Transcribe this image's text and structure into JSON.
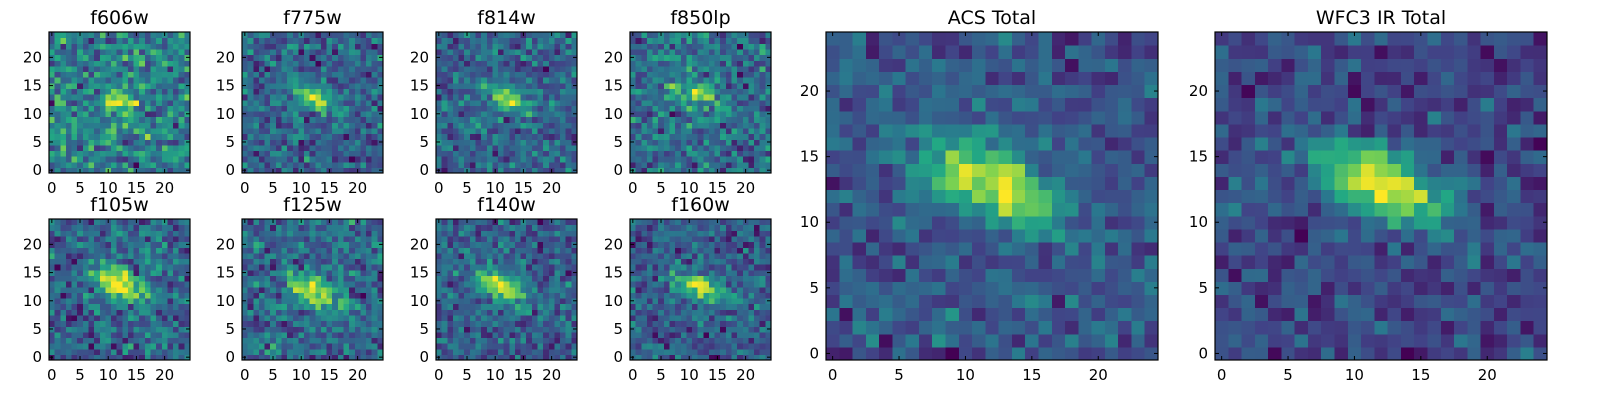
{
  "figure": {
    "colormap": "viridis",
    "colormap_stops": [
      "#440154",
      "#414487",
      "#2a788e",
      "#22a884",
      "#7ad151",
      "#fde725"
    ],
    "background": "#ffffff"
  },
  "chart_data": [
    {
      "type": "heatmap",
      "title": "f606w",
      "grid": "25x25",
      "xlim": [
        -0.5,
        24.5
      ],
      "ylim": [
        -0.5,
        24.5
      ],
      "x_ticks": [
        0,
        5,
        10,
        15,
        20
      ],
      "x_tick_labels": [
        "0",
        "5",
        "10",
        "15",
        "20"
      ],
      "y_ticks": [
        0,
        5,
        10,
        15,
        20
      ],
      "y_tick_labels": [
        "0",
        "5",
        "10",
        "15",
        "20"
      ],
      "source": {
        "x": 12,
        "y": 12.5,
        "sx": 2.2,
        "sy": 1.6,
        "rho": -0.2,
        "peak": 0.8
      },
      "background_level": 0.52,
      "noise": 0.3,
      "seed": 11
    },
    {
      "type": "heatmap",
      "title": "f775w",
      "grid": "25x25",
      "xlim": [
        -0.5,
        24.5
      ],
      "ylim": [
        -0.5,
        24.5
      ],
      "x_ticks": [
        0,
        5,
        10,
        15,
        20
      ],
      "x_tick_labels": [
        "0",
        "5",
        "10",
        "15",
        "20"
      ],
      "y_ticks": [
        0,
        5,
        10,
        15,
        20
      ],
      "y_tick_labels": [
        "0",
        "5",
        "10",
        "15",
        "20"
      ],
      "source": {
        "x": 12,
        "y": 13,
        "sx": 3.2,
        "sy": 1.8,
        "rho": -0.7,
        "peak": 1.0
      },
      "background_level": 0.5,
      "noise": 0.25,
      "seed": 23
    },
    {
      "type": "heatmap",
      "title": "f814w",
      "grid": "25x25",
      "xlim": [
        -0.5,
        24.5
      ],
      "ylim": [
        -0.5,
        24.5
      ],
      "x_ticks": [
        0,
        5,
        10,
        15,
        20
      ],
      "x_tick_labels": [
        "0",
        "5",
        "10",
        "15",
        "20"
      ],
      "y_ticks": [
        0,
        5,
        10,
        15,
        20
      ],
      "y_tick_labels": [
        "0",
        "5",
        "10",
        "15",
        "20"
      ],
      "source": {
        "x": 12,
        "y": 13,
        "sx": 3.2,
        "sy": 1.8,
        "rho": -0.7,
        "peak": 1.0
      },
      "background_level": 0.5,
      "noise": 0.25,
      "seed": 37
    },
    {
      "type": "heatmap",
      "title": "f850lp",
      "grid": "25x25",
      "xlim": [
        -0.5,
        24.5
      ],
      "ylim": [
        -0.5,
        24.5
      ],
      "x_ticks": [
        0,
        5,
        10,
        15,
        20
      ],
      "x_tick_labels": [
        "0",
        "5",
        "10",
        "15",
        "20"
      ],
      "y_ticks": [
        0,
        5,
        10,
        15,
        20
      ],
      "y_tick_labels": [
        "0",
        "5",
        "10",
        "15",
        "20"
      ],
      "source": {
        "x": 11,
        "y": 13.5,
        "sx": 2.8,
        "sy": 1.8,
        "rho": -0.5,
        "peak": 0.9
      },
      "background_level": 0.52,
      "noise": 0.3,
      "seed": 41
    },
    {
      "type": "heatmap",
      "title": "f105w",
      "grid": "25x25",
      "xlim": [
        -0.5,
        24.5
      ],
      "ylim": [
        -0.5,
        24.5
      ],
      "x_ticks": [
        0,
        5,
        10,
        15,
        20
      ],
      "x_tick_labels": [
        "0",
        "5",
        "10",
        "15",
        "20"
      ],
      "y_ticks": [
        0,
        5,
        10,
        15,
        20
      ],
      "y_tick_labels": [
        "0",
        "5",
        "10",
        "15",
        "20"
      ],
      "source": {
        "x": 12,
        "y": 13,
        "sx": 3.0,
        "sy": 2.0,
        "rho": -0.5,
        "peak": 1.0
      },
      "background_level": 0.5,
      "noise": 0.18,
      "seed": 53
    },
    {
      "type": "heatmap",
      "title": "f125w",
      "grid": "25x25",
      "xlim": [
        -0.5,
        24.5
      ],
      "ylim": [
        -0.5,
        24.5
      ],
      "x_ticks": [
        0,
        5,
        10,
        15,
        20
      ],
      "x_tick_labels": [
        "0",
        "5",
        "10",
        "15",
        "20"
      ],
      "y_ticks": [
        0,
        5,
        10,
        15,
        20
      ],
      "y_tick_labels": [
        "0",
        "5",
        "10",
        "15",
        "20"
      ],
      "source": {
        "x": 12,
        "y": 12,
        "sx": 3.0,
        "sy": 2.0,
        "rho": -0.5,
        "peak": 0.95
      },
      "background_level": 0.5,
      "noise": 0.2,
      "seed": 67
    },
    {
      "type": "heatmap",
      "title": "f140w",
      "grid": "25x25",
      "xlim": [
        -0.5,
        24.5
      ],
      "ylim": [
        -0.5,
        24.5
      ],
      "x_ticks": [
        0,
        5,
        10,
        15,
        20
      ],
      "x_tick_labels": [
        "0",
        "5",
        "10",
        "15",
        "20"
      ],
      "y_ticks": [
        0,
        5,
        10,
        15,
        20
      ],
      "y_tick_labels": [
        "0",
        "5",
        "10",
        "15",
        "20"
      ],
      "source": {
        "x": 11,
        "y": 12.5,
        "sx": 3.0,
        "sy": 2.0,
        "rho": -0.5,
        "peak": 1.0
      },
      "background_level": 0.5,
      "noise": 0.2,
      "seed": 79
    },
    {
      "type": "heatmap",
      "title": "f160w",
      "grid": "25x25",
      "xlim": [
        -0.5,
        24.5
      ],
      "ylim": [
        -0.5,
        24.5
      ],
      "x_ticks": [
        0,
        5,
        10,
        15,
        20
      ],
      "x_tick_labels": [
        "0",
        "5",
        "10",
        "15",
        "20"
      ],
      "y_ticks": [
        0,
        5,
        10,
        15,
        20
      ],
      "y_tick_labels": [
        "0",
        "5",
        "10",
        "15",
        "20"
      ],
      "source": {
        "x": 12,
        "y": 12.5,
        "sx": 3.2,
        "sy": 1.8,
        "rho": -0.6,
        "peak": 1.0
      },
      "background_level": 0.5,
      "noise": 0.2,
      "seed": 83
    },
    {
      "type": "heatmap",
      "title": "ACS Total",
      "grid": "25x25",
      "xlim": [
        -0.5,
        24.5
      ],
      "ylim": [
        -0.5,
        24.5
      ],
      "x_ticks": [
        0,
        5,
        10,
        15,
        20
      ],
      "x_tick_labels": [
        "0",
        "5",
        "10",
        "15",
        "20"
      ],
      "y_ticks": [
        0,
        5,
        10,
        15,
        20
      ],
      "y_tick_labels": [
        "0",
        "5",
        "10",
        "15",
        "20"
      ],
      "source": {
        "x": 12,
        "y": 13,
        "sx": 3.6,
        "sy": 2.2,
        "rho": -0.6,
        "peak": 1.0
      },
      "background_level": 0.5,
      "noise": 0.14,
      "seed": 97
    },
    {
      "type": "heatmap",
      "title": "WFC3 IR Total",
      "grid": "25x25",
      "xlim": [
        -0.5,
        24.5
      ],
      "ylim": [
        -0.5,
        24.5
      ],
      "x_ticks": [
        0,
        5,
        10,
        15,
        20
      ],
      "x_tick_labels": [
        "0",
        "5",
        "10",
        "15",
        "20"
      ],
      "y_ticks": [
        0,
        5,
        10,
        15,
        20
      ],
      "y_tick_labels": [
        "0",
        "5",
        "10",
        "15",
        "20"
      ],
      "source": {
        "x": 12,
        "y": 13,
        "sx": 3.6,
        "sy": 2.2,
        "rho": -0.6,
        "peak": 1.0
      },
      "background_level": 0.5,
      "noise": 0.12,
      "seed": 101
    }
  ]
}
